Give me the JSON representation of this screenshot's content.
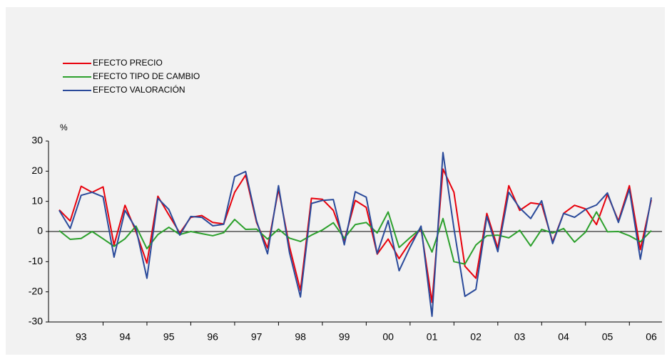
{
  "chart_data": {
    "type": "line",
    "categories": [
      null,
      null,
      "93",
      null,
      null,
      null,
      "94",
      null,
      null,
      null,
      "95",
      null,
      null,
      null,
      "96",
      null,
      null,
      null,
      "97",
      null,
      null,
      null,
      "98",
      null,
      null,
      null,
      "99",
      null,
      null,
      null,
      "00",
      null,
      null,
      null,
      "01",
      null,
      null,
      null,
      "02",
      null,
      null,
      null,
      "03",
      null,
      null,
      null,
      "04",
      null,
      null,
      null,
      "05",
      null,
      null,
      null,
      "06"
    ],
    "y_unit_label": "%",
    "ylim": [
      -30,
      30
    ],
    "yticks": [
      -30,
      -20,
      -10,
      0,
      10,
      20,
      30
    ],
    "series": [
      {
        "name": "EFECTO PRECIO",
        "color": "#e8000b",
        "values": [
          7.2,
          3.5,
          15,
          13,
          14.8,
          -4.5,
          8.7,
          0,
          -10.5,
          11.7,
          5.5,
          -0.5,
          4.7,
          5.3,
          3,
          2.5,
          13,
          18.7,
          3,
          -5.5,
          14,
          -5,
          -19.5,
          11,
          10.7,
          7,
          -3,
          10.3,
          8,
          -7.5,
          -2.5,
          -9,
          -3.5,
          1,
          -23.5,
          20.7,
          13,
          -11.5,
          -15.5,
          6,
          -5.5,
          15.2,
          7,
          9.5,
          9,
          -3.5,
          6,
          8.7,
          7.5,
          2.3,
          12.3,
          3.5,
          15.2,
          -6,
          10.5
        ]
      },
      {
        "name": "EFECTO TIPO DE CAMBIO",
        "color": "#2ca02c",
        "values": [
          0.3,
          -2.6,
          -2.3,
          0,
          -2.4,
          -4.9,
          -2.4,
          1.8,
          -5.7,
          -1,
          1.4,
          -1,
          0,
          -0.7,
          -1.4,
          -0.4,
          4,
          0.7,
          0.8,
          -2.5,
          0.8,
          -2.2,
          -3.3,
          -1.2,
          0.5,
          2.9,
          -2.2,
          2.3,
          3,
          -0.5,
          6.5,
          -5.3,
          -2,
          1,
          -6.8,
          4.3,
          -10,
          -10.8,
          -4.5,
          -1.4,
          -1.2,
          -2.1,
          0.4,
          -4.8,
          0.7,
          -0.5,
          1,
          -3.5,
          -0.2,
          6.5,
          -0.1,
          0,
          -1.4,
          -3.4,
          0.3
        ]
      },
      {
        "name": "EFECTO VALORACIÓN",
        "color": "#2a4a9a",
        "values": [
          7,
          1,
          12,
          13,
          11.5,
          -8.5,
          7,
          1,
          -15.5,
          11,
          7.3,
          -1.2,
          5,
          4.7,
          1.9,
          2.4,
          18.2,
          19.9,
          3.5,
          -7.4,
          15.2,
          -7,
          -21.7,
          9.3,
          10.3,
          10.6,
          -4.4,
          13.2,
          11.4,
          -7.3,
          3.6,
          -13,
          -5.2,
          1.8,
          -28.1,
          26.2,
          1,
          -21.5,
          -19.2,
          5,
          -6.7,
          13,
          7.8,
          4.3,
          10.2,
          -4,
          6,
          4.7,
          7.3,
          8.8,
          12.8,
          3,
          14,
          -9.2,
          11.3
        ]
      }
    ]
  }
}
